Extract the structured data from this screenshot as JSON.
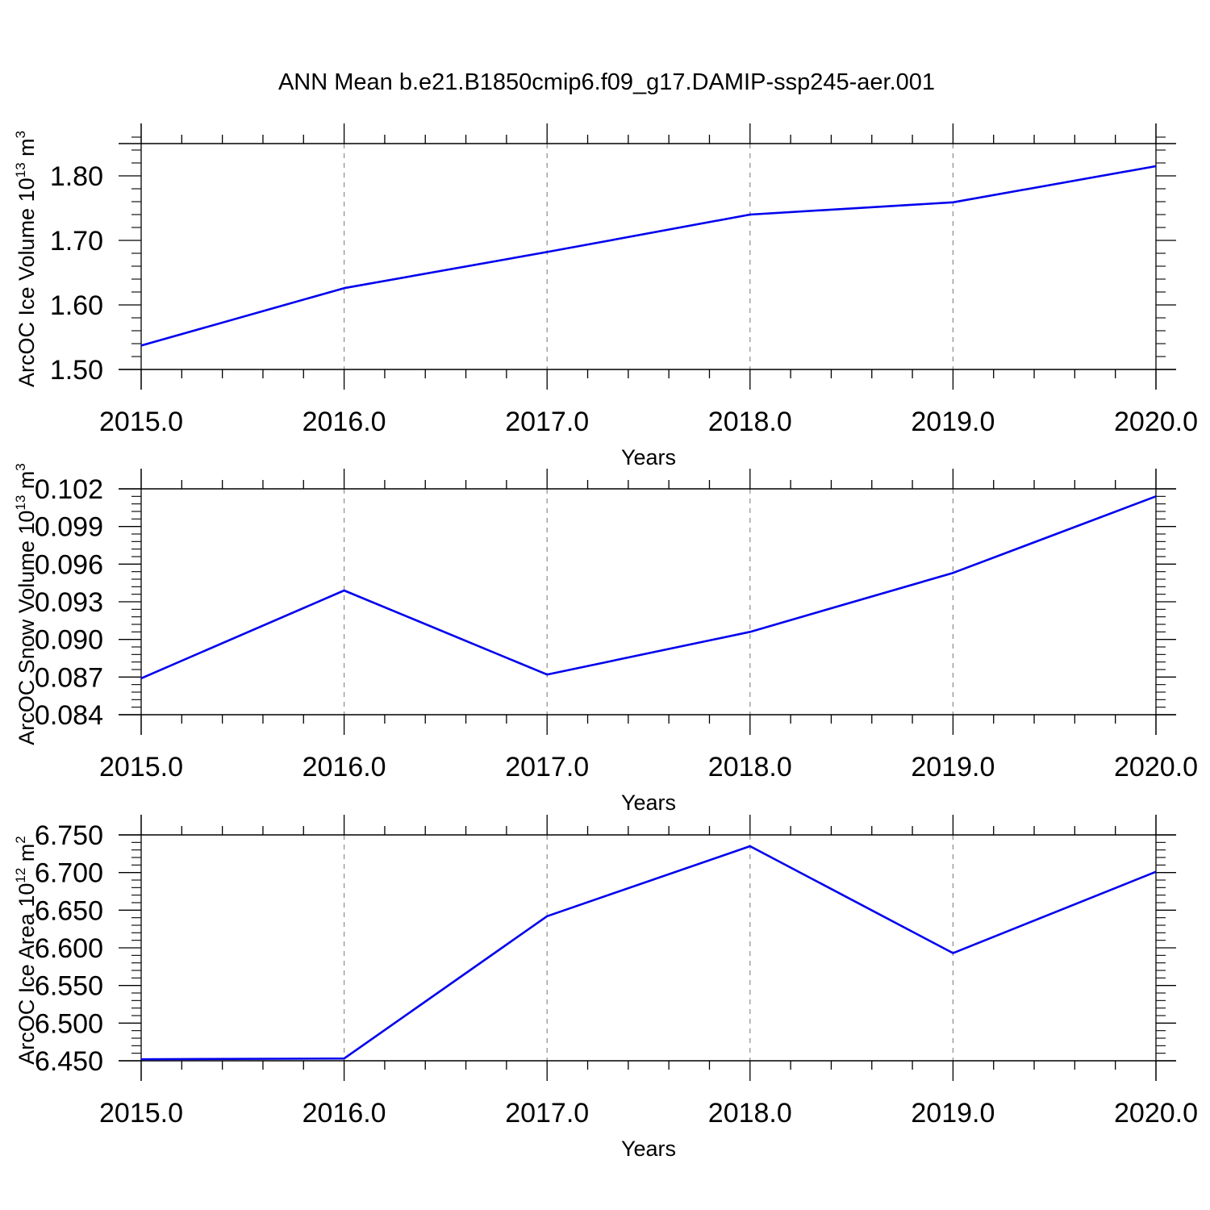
{
  "figure": {
    "title": "ANN Mean b.e21.B1850cmip6.f09_g17.DAMIP-ssp245-aer.001"
  },
  "chart_data": [
    {
      "type": "line",
      "xlabel": "Years",
      "ylabel": {
        "prefix": "ArcOC Ice Volume 10",
        "exponent": "13",
        "unit": " m",
        "unit_exponent": "3"
      },
      "xlim": [
        2015.0,
        2020.0
      ],
      "ylim": [
        1.5,
        1.85
      ],
      "xticks": [
        "2015.0",
        "2016.0",
        "2017.0",
        "2018.0",
        "2019.0",
        "2020.0"
      ],
      "yticks": [
        "1.50",
        "1.60",
        "1.70",
        "1.80"
      ],
      "ytick_values": [
        1.5,
        1.6,
        1.7,
        1.8
      ],
      "y_minor_step": 0.02,
      "grid": "vertical dashed",
      "line_color": "#0000ee",
      "x": [
        2015.0,
        2016.0,
        2017.0,
        2018.0,
        2019.0,
        2020.0
      ],
      "values": [
        1.537,
        1.626,
        1.682,
        1.74,
        1.759,
        1.815
      ]
    },
    {
      "type": "line",
      "xlabel": "Years",
      "ylabel": {
        "prefix": "ArcOC Snow Volume 10",
        "exponent": "13",
        "unit": " m",
        "unit_exponent": "3"
      },
      "xlim": [
        2015.0,
        2020.0
      ],
      "ylim": [
        0.084,
        0.102
      ],
      "xticks": [
        "2015.0",
        "2016.0",
        "2017.0",
        "2018.0",
        "2019.0",
        "2020.0"
      ],
      "yticks": [
        "0.084",
        "0.087",
        "0.090",
        "0.093",
        "0.096",
        "0.099",
        "0.102"
      ],
      "ytick_values": [
        0.084,
        0.087,
        0.09,
        0.093,
        0.096,
        0.099,
        0.102
      ],
      "y_minor_step": 0.0006,
      "grid": "vertical dashed",
      "line_color": "#0000ee",
      "x": [
        2015.0,
        2016.0,
        2017.0,
        2018.0,
        2019.0,
        2020.0
      ],
      "values": [
        0.0869,
        0.0939,
        0.0872,
        0.0906,
        0.0953,
        0.1014
      ]
    },
    {
      "type": "line",
      "xlabel": "Years",
      "ylabel": {
        "prefix": "ArcOC Ice Area 10",
        "exponent": "12",
        "unit": " m",
        "unit_exponent": "2"
      },
      "xlim": [
        2015.0,
        2020.0
      ],
      "ylim": [
        6.45,
        6.75
      ],
      "xticks": [
        "2015.0",
        "2016.0",
        "2017.0",
        "2018.0",
        "2019.0",
        "2020.0"
      ],
      "yticks": [
        "6.450",
        "6.500",
        "6.550",
        "6.600",
        "6.650",
        "6.700",
        "6.750"
      ],
      "ytick_values": [
        6.45,
        6.5,
        6.55,
        6.6,
        6.65,
        6.7,
        6.75
      ],
      "y_minor_step": 0.01,
      "grid": "vertical dashed",
      "line_color": "#0000ee",
      "x": [
        2015.0,
        2016.0,
        2017.0,
        2018.0,
        2019.0,
        2020.0
      ],
      "values": [
        6.452,
        6.453,
        6.642,
        6.735,
        6.593,
        6.701
      ]
    }
  ]
}
